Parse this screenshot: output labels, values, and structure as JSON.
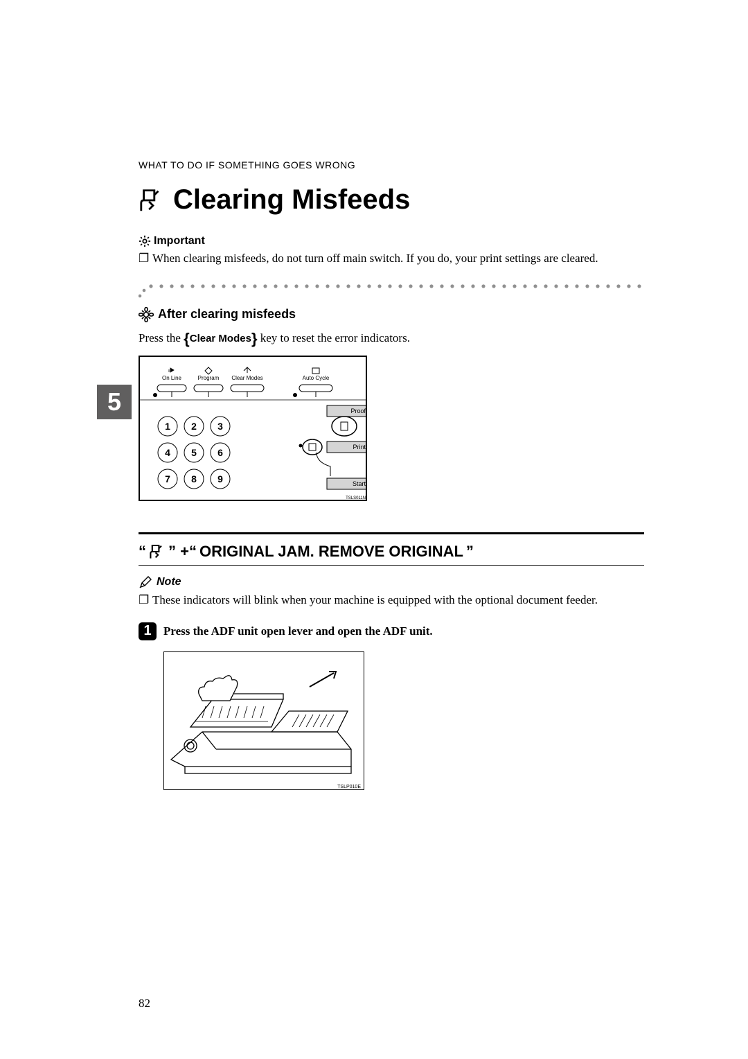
{
  "running_head": "WHAT TO DO IF SOMETHING GOES WRONG",
  "main_title": "Clearing Misfeeds",
  "chapter_num": "5",
  "important": {
    "label": "Important",
    "text": "When clearing misfeeds, do not turn off main switch. If you do, your print settings are cleared."
  },
  "after_clearing": {
    "heading": "After clearing misfeeds",
    "press_pre": "Press the ",
    "key_label": "Clear Modes",
    "press_post": " key to reset the error indicators."
  },
  "panel": {
    "buttons": {
      "online": "On Line",
      "program": "Program",
      "clear_modes": "Clear Modes",
      "auto_cycle": "Auto Cycle"
    },
    "side": {
      "proof": "Proof",
      "print": "Print",
      "start": "Start"
    },
    "keys": [
      "1",
      "2",
      "3",
      "4",
      "5",
      "6",
      "7",
      "8",
      "9"
    ],
    "code": "TSLS011N"
  },
  "subhead": {
    "quote1": "“",
    "quote2": "” +“",
    "text": "ORIGINAL JAM. REMOVE ORIGINAL",
    "quote3": "”"
  },
  "note": {
    "label": "Note",
    "text": "These indicators will blink when your machine is equipped with the optional document feeder."
  },
  "step1": {
    "num": "1",
    "text": "Press the ADF unit open lever and open the ADF unit."
  },
  "adf_code": "TSLP010E",
  "page_num": "82",
  "colors": {
    "text": "#000000",
    "tab_bg": "#605f5f",
    "dot": "#909090"
  }
}
